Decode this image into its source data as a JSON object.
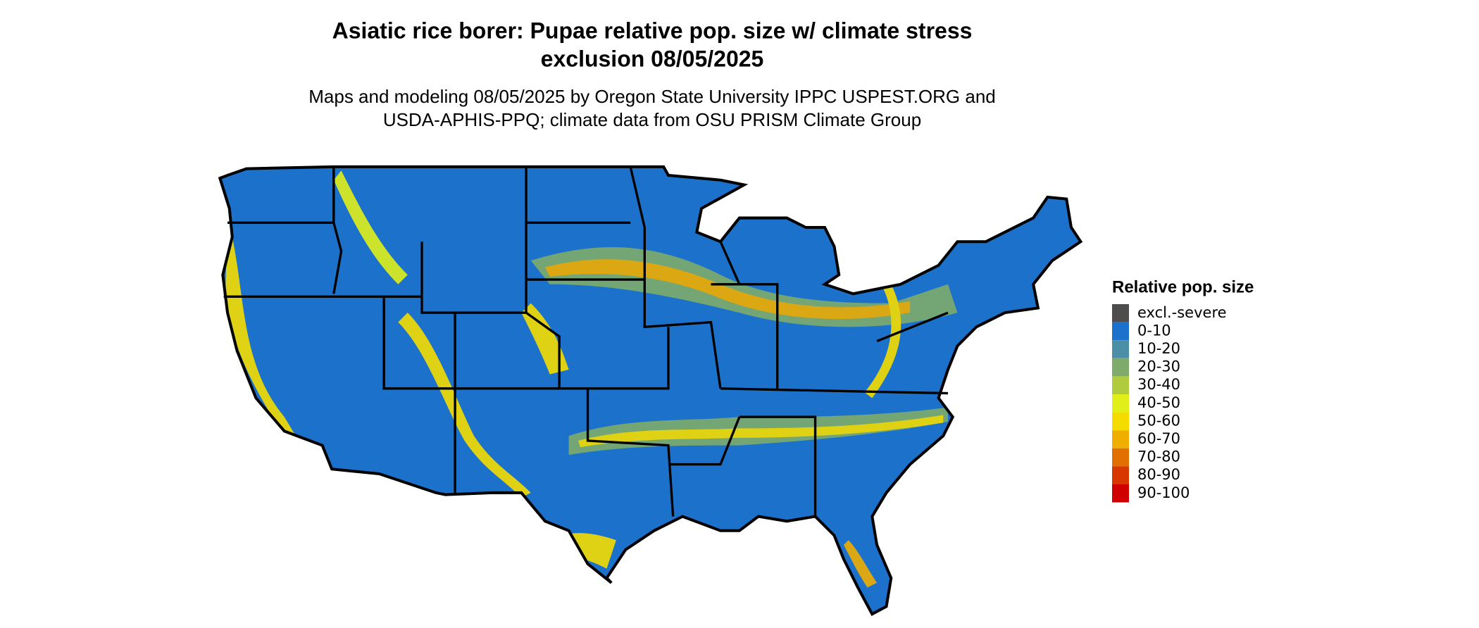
{
  "header": {
    "title": [
      "Asiatic rice borer: Pupae relative pop. size w/ climate stress",
      "exclusion 08/05/2025"
    ],
    "subtitle": [
      "Maps and modeling 08/05/2025 by Oregon State University IPPC USPEST.ORG and",
      "USDA-APHIS-PPQ; climate data from OSU PRISM Climate Group"
    ]
  },
  "legend": {
    "title": "Relative pop. size",
    "items": [
      {
        "label": "excl.-severe",
        "color": "#4d4d4d"
      },
      {
        "label": "0-10",
        "color": "#1c72ca"
      },
      {
        "label": "10-20",
        "color": "#4a8fa6"
      },
      {
        "label": "20-30",
        "color": "#7eab6c"
      },
      {
        "label": "30-40",
        "color": "#b0cc3e"
      },
      {
        "label": "40-50",
        "color": "#e0ef1a"
      },
      {
        "label": "50-60",
        "color": "#f5dc00"
      },
      {
        "label": "60-70",
        "color": "#f0ae00"
      },
      {
        "label": "70-80",
        "color": "#e27000"
      },
      {
        "label": "80-90",
        "color": "#d83800"
      },
      {
        "label": "90-100",
        "color": "#d00000"
      }
    ]
  }
}
